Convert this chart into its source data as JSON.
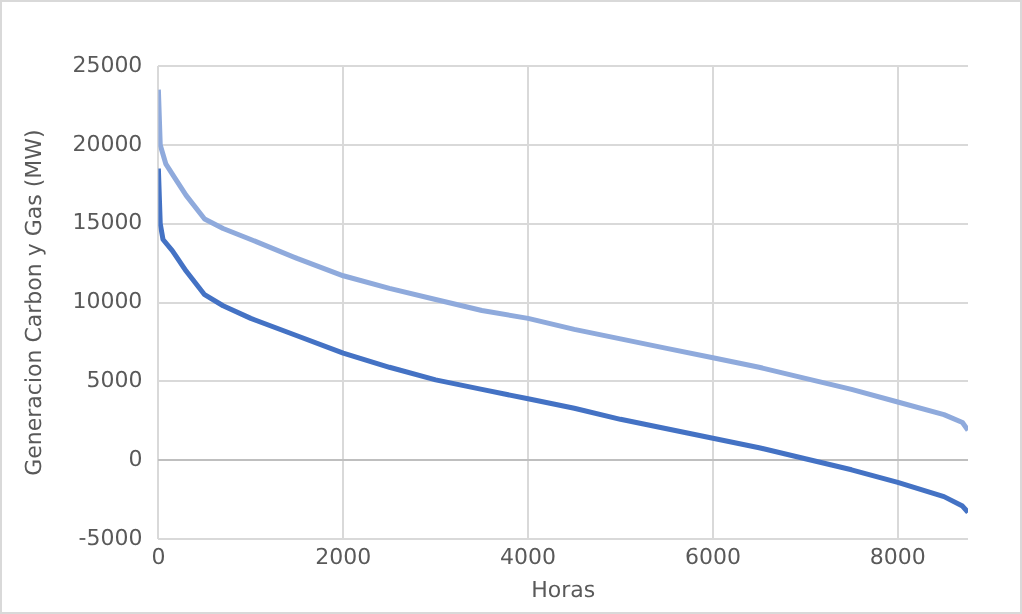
{
  "chart_data": {
    "type": "line",
    "xlabel": "Horas",
    "ylabel": "Generacion Carbon y Gas (MW)",
    "xlim": [
      0,
      8760
    ],
    "xticks": [
      0,
      2000,
      4000,
      6000,
      8000
    ],
    "ylim": [
      -5000,
      25000
    ],
    "yticks": [
      -5000,
      0,
      5000,
      10000,
      15000,
      20000,
      25000
    ],
    "grid": true,
    "legend": false,
    "marker": "none",
    "line_style": "solid",
    "series": [
      {
        "color": "#8faadc",
        "x": [
          0,
          20,
          80,
          200,
          300,
          500,
          700,
          1000,
          1500,
          2000,
          2500,
          3000,
          3500,
          4000,
          4500,
          5000,
          5500,
          6000,
          6500,
          7000,
          7500,
          8000,
          8500,
          8700,
          8760
        ],
        "values": [
          23500,
          20000,
          18800,
          17700,
          16800,
          15300,
          14700,
          14000,
          12800,
          11700,
          10900,
          10200,
          9500,
          9000,
          8300,
          7700,
          7100,
          6500,
          5900,
          5200,
          4500,
          3700,
          2900,
          2400,
          1900
        ]
      },
      {
        "color": "#4472c4",
        "x": [
          0,
          20,
          50,
          150,
          300,
          500,
          700,
          1000,
          1500,
          2000,
          2500,
          3000,
          3500,
          4000,
          4500,
          5000,
          5500,
          6000,
          6500,
          7000,
          7500,
          8000,
          8500,
          8700,
          8760
        ],
        "values": [
          18500,
          15000,
          14000,
          13300,
          12000,
          10500,
          9800,
          9000,
          7900,
          6800,
          5900,
          5100,
          4500,
          3900,
          3300,
          2600,
          2000,
          1400,
          800,
          100,
          -600,
          -1400,
          -2300,
          -2900,
          -3300
        ]
      }
    ]
  }
}
